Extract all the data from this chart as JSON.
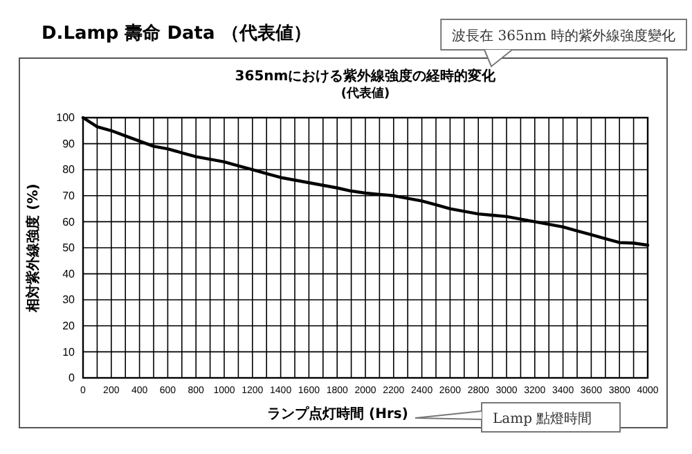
{
  "chart_data": {
    "type": "line",
    "title": "D.Lamp 壽命 Data （代表値）",
    "subtitle": "365nmにおける紫外線強度の経時的変化\n(代表値)",
    "xlabel": "ランプ点灯時間 (Hrs)",
    "ylabel": "相対紫外線強度 (%)",
    "annotations": [
      "波長在 365nm 時的紫外線強度變化",
      "Lamp 點燈時間"
    ],
    "x": [
      0,
      100,
      200,
      300,
      400,
      500,
      600,
      700,
      800,
      900,
      1000,
      1100,
      1200,
      1300,
      1400,
      1500,
      1600,
      1700,
      1800,
      1900,
      2000,
      2100,
      2200,
      2300,
      2400,
      2500,
      2600,
      2700,
      2800,
      2900,
      3000,
      3100,
      3200,
      3300,
      3400,
      3500,
      3600,
      3700,
      3800,
      3900,
      4000
    ],
    "series": [
      {
        "color": "#000000",
        "values": [
          100,
          96.5,
          95,
          93,
          91,
          89,
          88,
          86.5,
          85,
          84,
          83,
          81.5,
          80,
          78.5,
          77,
          76,
          75,
          74,
          73,
          71.8,
          71,
          70.5,
          70,
          69,
          68,
          66.5,
          65,
          64,
          63,
          62.5,
          62,
          61,
          60,
          59,
          58,
          56.5,
          55,
          53.5,
          52,
          51.8,
          51
        ]
      }
    ],
    "xlim": [
      0,
      4000
    ],
    "xticks": [
      0,
      {
        "value": 100,
        "label": null
      },
      200,
      {
        "value": 300,
        "label": null
      },
      400,
      {
        "value": 500,
        "label": null
      },
      600,
      {
        "value": 700,
        "label": null
      },
      800,
      {
        "value": 900,
        "label": null
      },
      1000,
      {
        "value": 1100,
        "label": null
      },
      1200,
      {
        "value": 1300,
        "label": null
      },
      1400,
      {
        "value": 1500,
        "label": null
      },
      1600,
      {
        "value": 1700,
        "label": null
      },
      1800,
      {
        "value": 1900,
        "label": null
      },
      2000,
      {
        "value": 2100,
        "label": null
      },
      2200,
      {
        "value": 2300,
        "label": null
      },
      2400,
      {
        "value": 2500,
        "label": null
      },
      2600,
      {
        "value": 2700,
        "label": null
      },
      2800,
      {
        "value": 2900,
        "label": null
      },
      3000,
      {
        "value": 3100,
        "label": null
      },
      3200,
      {
        "value": 3300,
        "label": null
      },
      3400,
      {
        "value": 3500,
        "label": null
      },
      3600,
      {
        "value": 3700,
        "label": null
      },
      3800,
      {
        "value": 3900,
        "label": null
      },
      4000
    ],
    "ylim": [
      0,
      100
    ],
    "yticks": [
      0,
      10,
      20,
      30,
      40,
      50,
      60,
      70,
      80,
      90,
      100
    ],
    "grid": true,
    "marker": "none",
    "line_style": "solid"
  }
}
